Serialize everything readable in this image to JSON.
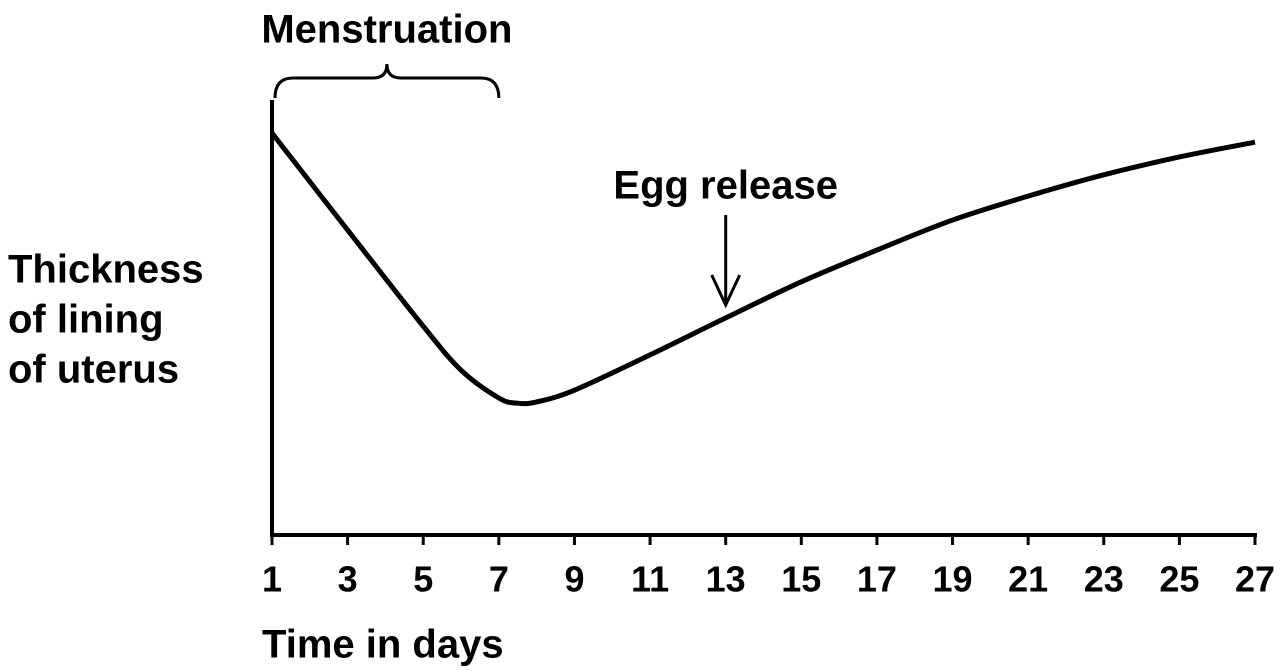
{
  "chart_data": {
    "type": "line",
    "xlabel": "Time in days",
    "ylabel": [
      "Thickness",
      "of lining",
      "of uterus"
    ],
    "x": [
      1,
      3,
      5,
      6,
      7,
      7.5,
      8,
      9,
      11,
      13,
      15,
      17,
      19,
      21,
      23,
      25,
      27
    ],
    "series": [
      {
        "color": "#000000",
        "values": [
          92.4,
          70.1,
          48.0,
          37.9,
          31.5,
          30.3,
          30.6,
          33.3,
          41.4,
          49.9,
          58.2,
          65.5,
          72.4,
          77.9,
          82.8,
          86.9,
          90.3
        ]
      }
    ],
    "xlim": [
      1,
      27
    ],
    "xticks": [
      1,
      3,
      5,
      7,
      9,
      11,
      13,
      15,
      17,
      19,
      21,
      23,
      25,
      27
    ],
    "ylim": [
      0,
      100
    ],
    "annotations": [
      {
        "text": "Menstruation",
        "type": "brace",
        "x": [
          1,
          7
        ]
      },
      {
        "text": "Egg release",
        "type": "arrow",
        "x": 13
      }
    ]
  }
}
